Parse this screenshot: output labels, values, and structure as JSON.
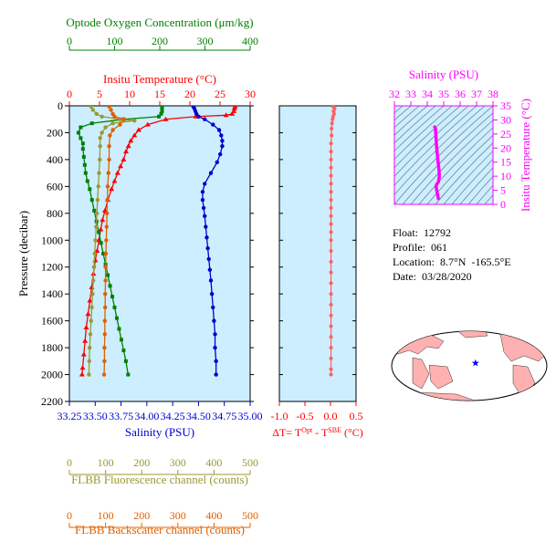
{
  "float_info": {
    "float_label": "Float:",
    "float_id": "12792",
    "profile_label": "Profile:",
    "profile_id": "061",
    "location_label": "Location:",
    "location": "8.7°N  -165.5°E",
    "date_label": "Date:",
    "date": "03/28/2020"
  },
  "colors": {
    "temperature": "#ff0000",
    "salinity": "#0000cc",
    "oxygen": "#008000",
    "fluorescence": "#999933",
    "backscatter": "#e06000",
    "delta_t": "#ff6060",
    "ts": "#ff00ff",
    "panel_bg": "#cceeff",
    "land": "#ffb0b0",
    "ocean": "#ffffff"
  },
  "chart_data": [
    {
      "type": "line",
      "id": "main_profile",
      "y_axis": {
        "label": "Pressure (decibar)",
        "range": [
          2200,
          0
        ],
        "ticks": [
          0,
          200,
          400,
          600,
          800,
          1000,
          1200,
          1400,
          1600,
          1800,
          2000,
          2200
        ]
      },
      "x_axes": [
        {
          "key": "oxygen",
          "label": "Optode Oxygen Concentration (μm/kg)",
          "range": [
            0,
            400
          ],
          "ticks": [
            0,
            100,
            200,
            300,
            400
          ]
        },
        {
          "key": "temperature",
          "label": "Insitu Temperature (°C)",
          "range": [
            0,
            30
          ],
          "ticks": [
            0,
            5,
            10,
            15,
            20,
            25,
            30
          ]
        },
        {
          "key": "salinity",
          "label": "Salinity (PSU)",
          "range": [
            33.25,
            35.0
          ],
          "ticks": [
            "33.25",
            "33.50",
            "33.75",
            "34.00",
            "34.25",
            "34.50",
            "34.75",
            "35.00"
          ]
        },
        {
          "key": "fluorescence",
          "label": "FLBB Fluorescence channel (counts)",
          "range": [
            0,
            500
          ],
          "ticks": [
            0,
            100,
            200,
            300,
            400,
            500
          ]
        },
        {
          "key": "backscatter",
          "label": "FLBB Backscatter channel (counts)",
          "range": [
            0,
            500
          ],
          "ticks": [
            0,
            100,
            200,
            300,
            400,
            500
          ]
        }
      ],
      "series": [
        {
          "key": "temperature",
          "marker": "triangle",
          "points": [
            [
              27.5,
              5
            ],
            [
              27.4,
              20
            ],
            [
              27.3,
              40
            ],
            [
              27,
              60
            ],
            [
              26,
              70
            ],
            [
              21,
              80
            ],
            [
              16,
              100
            ],
            [
              13,
              140
            ],
            [
              11.5,
              180
            ],
            [
              10.8,
              220
            ],
            [
              10.2,
              260
            ],
            [
              9.8,
              300
            ],
            [
              9.4,
              340
            ],
            [
              9.0,
              400
            ],
            [
              8.5,
              450
            ],
            [
              8.0,
              500
            ],
            [
              7.5,
              560
            ],
            [
              7.0,
              620
            ],
            [
              6.4,
              700
            ],
            [
              5.9,
              780
            ],
            [
              5.5,
              850
            ],
            [
              5.2,
              920
            ],
            [
              4.9,
              1000
            ],
            [
              4.6,
              1080
            ],
            [
              4.3,
              1150
            ],
            [
              4.0,
              1250
            ],
            [
              3.7,
              1350
            ],
            [
              3.4,
              1450
            ],
            [
              3.1,
              1550
            ],
            [
              2.8,
              1650
            ],
            [
              2.6,
              1750
            ],
            [
              2.4,
              1850
            ],
            [
              2.2,
              1950
            ],
            [
              2.1,
              2000
            ]
          ]
        },
        {
          "key": "salinity",
          "marker": "circle",
          "points": [
            [
              34.45,
              5
            ],
            [
              34.46,
              20
            ],
            [
              34.47,
              40
            ],
            [
              34.48,
              60
            ],
            [
              34.5,
              80
            ],
            [
              34.56,
              100
            ],
            [
              34.64,
              140
            ],
            [
              34.7,
              180
            ],
            [
              34.72,
              220
            ],
            [
              34.73,
              260
            ],
            [
              34.73,
              300
            ],
            [
              34.71,
              360
            ],
            [
              34.68,
              420
            ],
            [
              34.62,
              500
            ],
            [
              34.56,
              580
            ],
            [
              34.54,
              640
            ],
            [
              34.54,
              700
            ],
            [
              34.55,
              760
            ],
            [
              34.56,
              820
            ],
            [
              34.57,
              900
            ],
            [
              34.58,
              980
            ],
            [
              34.59,
              1060
            ],
            [
              34.6,
              1140
            ],
            [
              34.61,
              1220
            ],
            [
              34.62,
              1300
            ],
            [
              34.63,
              1400
            ],
            [
              34.64,
              1500
            ],
            [
              34.65,
              1600
            ],
            [
              34.66,
              1700
            ],
            [
              34.66,
              1800
            ],
            [
              34.67,
              1900
            ],
            [
              34.67,
              2000
            ]
          ]
        },
        {
          "key": "oxygen",
          "marker": "square",
          "points": [
            [
              205,
              5
            ],
            [
              205,
              20
            ],
            [
              205,
              40
            ],
            [
              203,
              60
            ],
            [
              198,
              80
            ],
            [
              120,
              100
            ],
            [
              50,
              130
            ],
            [
              25,
              160
            ],
            [
              20,
              200
            ],
            [
              25,
              240
            ],
            [
              30,
              280
            ],
            [
              30,
              320
            ],
            [
              32,
              380
            ],
            [
              34,
              440
            ],
            [
              36,
              500
            ],
            [
              40,
              560
            ],
            [
              45,
              620
            ],
            [
              50,
              700
            ],
            [
              55,
              780
            ],
            [
              60,
              860
            ],
            [
              65,
              940
            ],
            [
              70,
              1020
            ],
            [
              75,
              1100
            ],
            [
              80,
              1180
            ],
            [
              85,
              1260
            ],
            [
              90,
              1340
            ],
            [
              95,
              1420
            ],
            [
              100,
              1500
            ],
            [
              105,
              1580
            ],
            [
              110,
              1660
            ],
            [
              115,
              1740
            ],
            [
              120,
              1820
            ],
            [
              125,
              1900
            ],
            [
              130,
              2000
            ]
          ]
        },
        {
          "key": "fluorescence",
          "marker": "circle",
          "points": [
            [
              60,
              5
            ],
            [
              65,
              30
            ],
            [
              75,
              60
            ],
            [
              90,
              80
            ],
            [
              140,
              100
            ],
            [
              180,
              110
            ],
            [
              120,
              130
            ],
            [
              100,
              160
            ],
            [
              90,
              200
            ],
            [
              85,
              240
            ],
            [
              85,
              300
            ],
            [
              84,
              400
            ],
            [
              82,
              500
            ],
            [
              80,
              600
            ],
            [
              78,
              700
            ],
            [
              76,
              800
            ],
            [
              74,
              900
            ],
            [
              72,
              1000
            ],
            [
              70,
              1100
            ],
            [
              68,
              1200
            ],
            [
              66,
              1300
            ],
            [
              64,
              1400
            ],
            [
              62,
              1500
            ],
            [
              60,
              1600
            ],
            [
              58,
              1700
            ],
            [
              56,
              1800
            ],
            [
              55,
              1900
            ],
            [
              54,
              2000
            ]
          ]
        },
        {
          "key": "backscatter",
          "marker": "circle",
          "points": [
            [
              110,
              5
            ],
            [
              115,
              30
            ],
            [
              120,
              60
            ],
            [
              125,
              80
            ],
            [
              150,
              100
            ],
            [
              140,
              140
            ],
            [
              120,
              180
            ],
            [
              112,
              220
            ],
            [
              110,
              300
            ],
            [
              110,
              400
            ],
            [
              108,
              500
            ],
            [
              106,
              600
            ],
            [
              105,
              700
            ],
            [
              104,
              800
            ],
            [
              103,
              900
            ],
            [
              102,
              1000
            ],
            [
              101,
              1100
            ],
            [
              100,
              1200
            ],
            [
              100,
              1300
            ],
            [
              99,
              1400
            ],
            [
              99,
              1500
            ],
            [
              98,
              1600
            ],
            [
              98,
              1700
            ],
            [
              97,
              1800
            ],
            [
              97,
              1900
            ],
            [
              96,
              2000
            ]
          ]
        }
      ]
    },
    {
      "type": "scatter",
      "id": "delta_t_panel",
      "x_axis": {
        "label": "ΔT= T",
        "sup1": "Opt",
        "mid": " - T",
        "sup2": "SBE",
        "unit": " (°C)",
        "range": [
          -1.0,
          0.5
        ],
        "ticks": [
          "-1.0",
          "-0.5",
          "0.0",
          "0.5"
        ]
      },
      "series": [
        {
          "key": "delta_t",
          "points": [
            [
              0.05,
              5
            ],
            [
              0.08,
              20
            ],
            [
              0.06,
              40
            ],
            [
              0.07,
              60
            ],
            [
              0.05,
              80
            ],
            [
              0.04,
              100
            ],
            [
              0.03,
              130
            ],
            [
              0.02,
              170
            ],
            [
              0.02,
              220
            ],
            [
              0.01,
              280
            ],
            [
              0.01,
              340
            ],
            [
              0.01,
              400
            ],
            [
              0.01,
              460
            ],
            [
              0.01,
              520
            ],
            [
              0.01,
              580
            ],
            [
              0.01,
              640
            ],
            [
              0.01,
              700
            ],
            [
              0.01,
              760
            ],
            [
              0.01,
              820
            ],
            [
              0.01,
              880
            ],
            [
              0.01,
              940
            ],
            [
              0.01,
              1000
            ],
            [
              0.01,
              1080
            ],
            [
              0.01,
              1160
            ],
            [
              0.01,
              1240
            ],
            [
              0.01,
              1320
            ],
            [
              0.01,
              1400
            ],
            [
              0.01,
              1480
            ],
            [
              0.01,
              1560
            ],
            [
              0.01,
              1640
            ],
            [
              0.01,
              1720
            ],
            [
              0.01,
              1800
            ],
            [
              0.01,
              1880
            ],
            [
              0.01,
              1960
            ],
            [
              0.01,
              2000
            ]
          ]
        }
      ]
    },
    {
      "type": "line",
      "id": "ts_diagram",
      "x_axis": {
        "label": "Salinity (PSU)",
        "range": [
          32,
          38
        ],
        "ticks": [
          32,
          33,
          34,
          35,
          36,
          37,
          38
        ]
      },
      "y_axis": {
        "label": "Insitu Temperature (°C)",
        "range": [
          0,
          35
        ],
        "ticks": [
          0,
          5,
          10,
          15,
          20,
          25,
          30,
          35
        ]
      },
      "series": [
        {
          "key": "ts",
          "points": [
            [
              34.45,
              27.5
            ],
            [
              34.5,
              27.0
            ],
            [
              34.56,
              21.0
            ],
            [
              34.64,
              16.0
            ],
            [
              34.7,
              13.0
            ],
            [
              34.72,
              11.5
            ],
            [
              34.73,
              10.8
            ],
            [
              34.73,
              9.8
            ],
            [
              34.71,
              9.0
            ],
            [
              34.68,
              8.0
            ],
            [
              34.62,
              7.5
            ],
            [
              34.56,
              7.0
            ],
            [
              34.54,
              6.4
            ],
            [
              34.55,
              5.9
            ],
            [
              34.56,
              5.5
            ],
            [
              34.58,
              4.9
            ],
            [
              34.6,
              4.3
            ],
            [
              34.62,
              3.7
            ],
            [
              34.64,
              3.1
            ],
            [
              34.66,
              2.6
            ],
            [
              34.67,
              2.1
            ]
          ]
        }
      ]
    }
  ],
  "map": {
    "marker": {
      "lat": 8.7,
      "lon": -165.5,
      "symbol": "★"
    }
  }
}
